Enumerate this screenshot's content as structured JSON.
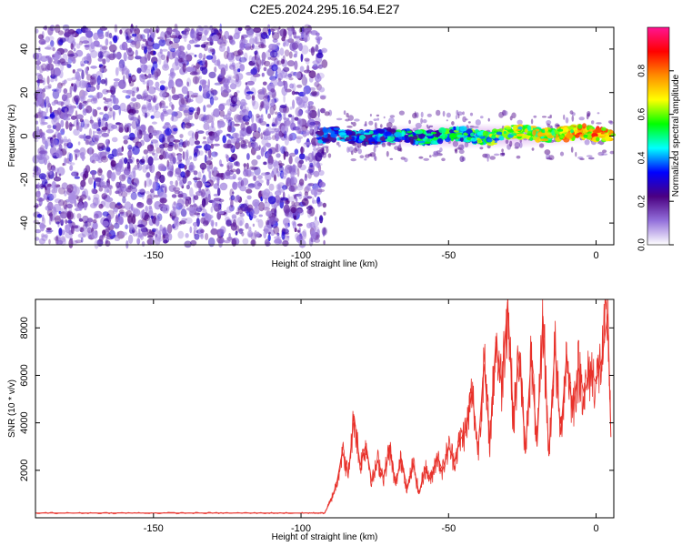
{
  "title": "C2E5.2024.295.16.54.E27",
  "colors": {
    "noise": "#8a2be2",
    "snr_line": "#e8312a",
    "frame": "#000000"
  },
  "chart_data": [
    {
      "type": "heatmap",
      "name": "spectrogram",
      "xlabel": "Height of straight line (km)",
      "ylabel": "Frequency (Hz)",
      "xlim": [
        -190,
        6
      ],
      "ylim": [
        -50,
        50
      ],
      "x_ticks": [
        "-150",
        "-100",
        "-50",
        "0"
      ],
      "y_ticks": [
        "-40",
        "-20",
        "0",
        "20",
        "40"
      ],
      "regions": [
        {
          "kind": "noise",
          "x_range": [
            -190,
            -92
          ],
          "freq_range": [
            -50,
            50
          ],
          "level": 0.25
        },
        {
          "kind": "signal_trace",
          "x_range": [
            -94,
            6
          ],
          "freq_center": 0,
          "freq_halfwidth": 4,
          "level_start": 0.45,
          "level_end": 0.95
        }
      ],
      "colorbar": {
        "label": "Normalized spectral amplitude",
        "ticks": [
          "0.0",
          "0.2",
          "0.4",
          "0.6",
          "0.8"
        ],
        "range": [
          0,
          1
        ],
        "stops": [
          "#ffffff",
          "#9370db",
          "#4b0082",
          "#0000ff",
          "#00ffff",
          "#00ff00",
          "#ffff00",
          "#ff8c00",
          "#ff0000",
          "#ff1493"
        ]
      }
    },
    {
      "type": "line",
      "name": "snr",
      "xlabel": "Height of straight line (km)",
      "ylabel": "SNR (10 * v/v)",
      "xlim": [
        -190,
        6
      ],
      "ylim": [
        0,
        9200
      ],
      "x_ticks": [
        "-150",
        "-100",
        "-50",
        "0"
      ],
      "y_ticks": [
        "2000",
        "4000",
        "6000",
        "8000"
      ],
      "series": [
        {
          "x": [
            -190,
            -180,
            -170,
            -160,
            -150,
            -140,
            -130,
            -120,
            -110,
            -100,
            -95,
            -92,
            -90,
            -88,
            -86,
            -84,
            -82,
            -80,
            -78,
            -76,
            -74,
            -72,
            -70,
            -68,
            -66,
            -64,
            -62,
            -60,
            -58,
            -56,
            -54,
            -52,
            -50,
            -48,
            -46,
            -44,
            -42,
            -40,
            -38,
            -36,
            -34,
            -32,
            -30,
            -28,
            -26,
            -24,
            -22,
            -20,
            -18,
            -16,
            -14,
            -12,
            -10,
            -8,
            -6,
            -4,
            -2,
            0,
            2,
            4,
            5
          ],
          "y": [
            200,
            200,
            200,
            200,
            200,
            200,
            200,
            200,
            200,
            200,
            200,
            200,
            700,
            1400,
            2800,
            1800,
            4300,
            2200,
            3100,
            1500,
            2400,
            1700,
            2900,
            1400,
            2500,
            1200,
            2300,
            1000,
            2100,
            1600,
            2600,
            2000,
            3000,
            2400,
            3300,
            3700,
            5300,
            2800,
            6500,
            3200,
            7400,
            5600,
            9100,
            4100,
            7000,
            2700,
            6800,
            3000,
            8500,
            2600,
            7200,
            3500,
            6900,
            4500,
            6300,
            5200,
            6200,
            5700,
            6700,
            8600,
            3400
          ]
        }
      ]
    }
  ]
}
